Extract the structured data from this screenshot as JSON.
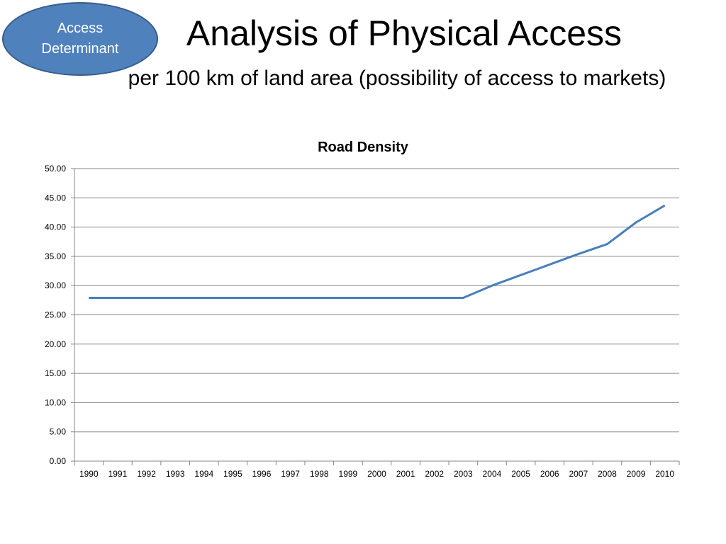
{
  "badge": {
    "line1": "Access",
    "line2": "Determinant"
  },
  "slide": {
    "title": "Analysis of Physical Access",
    "subtitle": "per 100 km of land area (possibility of access to markets)"
  },
  "chart_data": {
    "type": "line",
    "title": "Road Density",
    "xlabel": "",
    "ylabel": "",
    "categories": [
      "1990",
      "1991",
      "1992",
      "1993",
      "1994",
      "1995",
      "1996",
      "1997",
      "1998",
      "1999",
      "2000",
      "2001",
      "2002",
      "2003",
      "2004",
      "2005",
      "2006",
      "2007",
      "2008",
      "2009",
      "2010"
    ],
    "ylim": [
      0,
      50
    ],
    "yticks": [
      "0.00",
      "5.00",
      "10.00",
      "15.00",
      "20.00",
      "25.00",
      "30.00",
      "35.00",
      "40.00",
      "45.00",
      "50.00"
    ],
    "grid": true,
    "legend": "none",
    "series": [
      {
        "values": [
          27.9,
          27.9,
          27.9,
          27.9,
          27.9,
          27.9,
          27.9,
          27.9,
          27.9,
          27.9,
          27.9,
          27.9,
          27.9,
          27.9,
          30.0,
          31.8,
          33.6,
          35.4,
          37.1,
          40.8,
          43.7
        ],
        "color": "#4a7ebb"
      }
    ]
  }
}
